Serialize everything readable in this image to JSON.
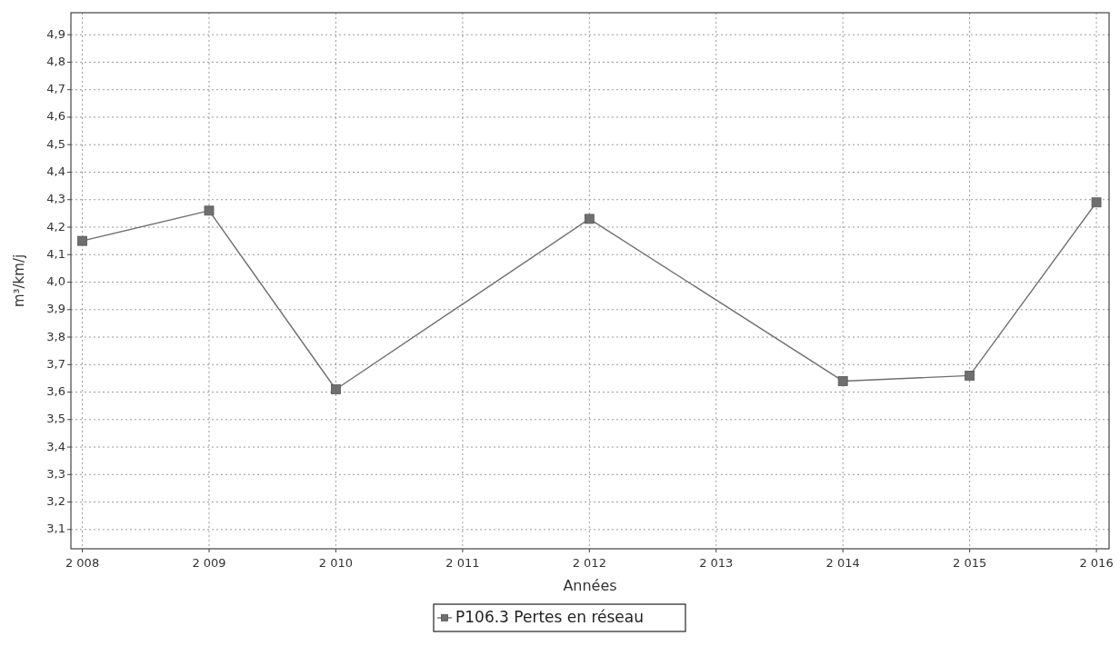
{
  "chart_data": {
    "type": "line",
    "xlabel": "Années",
    "ylabel": "m³/km/j",
    "x": [
      2008,
      2009,
      2010,
      2012,
      2014,
      2015,
      2016
    ],
    "series": [
      {
        "name": "P106.3 Pertes en réseau",
        "color": "#6f6f6f",
        "values": [
          4.15,
          4.26,
          3.61,
          4.23,
          3.64,
          3.66,
          4.29
        ]
      }
    ],
    "xlim": [
      2007.91,
      2016.1
    ],
    "xticks": [
      {
        "value": 2008,
        "label": "2 008"
      },
      {
        "value": 2009,
        "label": "2 009"
      },
      {
        "value": 2010,
        "label": "2 010"
      },
      {
        "value": 2011,
        "label": "2 011"
      },
      {
        "value": 2012,
        "label": "2 012"
      },
      {
        "value": 2013,
        "label": "2 013"
      },
      {
        "value": 2014,
        "label": "2 014"
      },
      {
        "value": 2015,
        "label": "2 015"
      },
      {
        "value": 2016,
        "label": "2 016"
      }
    ],
    "ylim": [
      3.03,
      4.98
    ],
    "yticks": [
      {
        "value": 3.1,
        "label": "3,1"
      },
      {
        "value": 3.2,
        "label": "3,2"
      },
      {
        "value": 3.3,
        "label": "3,3"
      },
      {
        "value": 3.4,
        "label": "3,4"
      },
      {
        "value": 3.5,
        "label": "3,5"
      },
      {
        "value": 3.6,
        "label": "3,6"
      },
      {
        "value": 3.7,
        "label": "3,7"
      },
      {
        "value": 3.8,
        "label": "3,8"
      },
      {
        "value": 3.9,
        "label": "3,9"
      },
      {
        "value": 4.0,
        "label": "4,0"
      },
      {
        "value": 4.1,
        "label": "4,1"
      },
      {
        "value": 4.2,
        "label": "4,2"
      },
      {
        "value": 4.3,
        "label": "4,3"
      },
      {
        "value": 4.4,
        "label": "4,4"
      },
      {
        "value": 4.5,
        "label": "4,5"
      },
      {
        "value": 4.6,
        "label": "4,6"
      },
      {
        "value": 4.7,
        "label": "4,7"
      },
      {
        "value": 4.8,
        "label": "4,8"
      },
      {
        "value": 4.9,
        "label": "4,9"
      }
    ],
    "grid": true,
    "legend": "bottom",
    "marker": "square",
    "line_style": "solid"
  }
}
